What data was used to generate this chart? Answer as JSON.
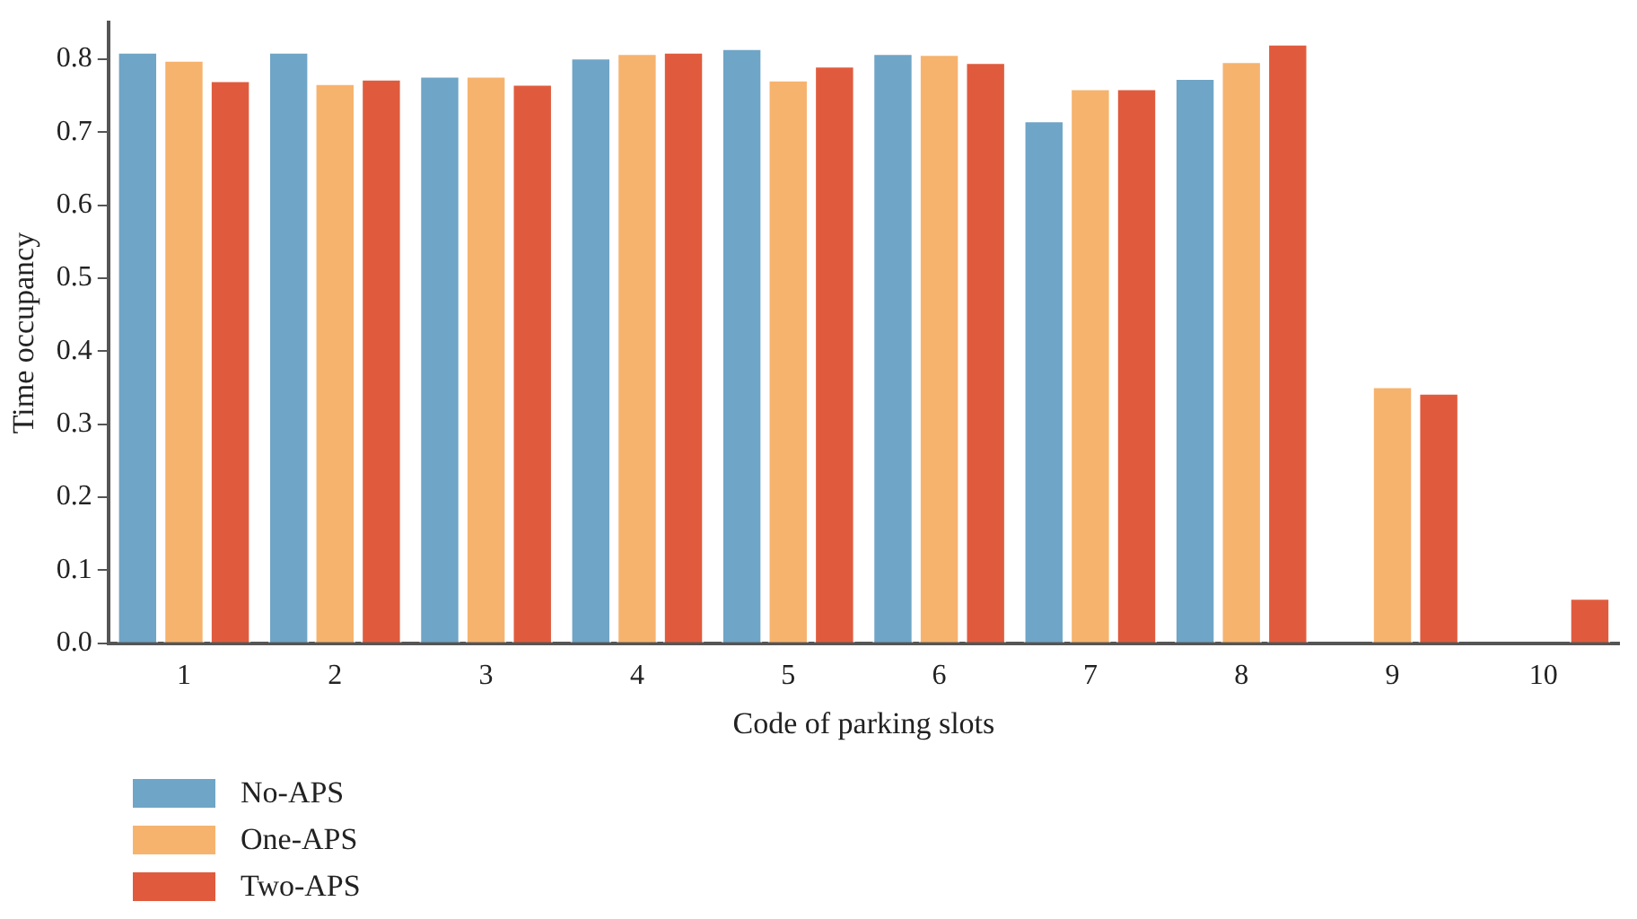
{
  "chart_data": {
    "type": "bar",
    "xlabel": "Code of parking slots",
    "ylabel": "Time occupancy",
    "categories": [
      "1",
      "2",
      "3",
      "4",
      "5",
      "6",
      "7",
      "8",
      "9",
      "10"
    ],
    "series": [
      {
        "name": "No-APS",
        "color": "#6fa5c6",
        "values": [
          0.81,
          0.81,
          0.777,
          0.802,
          0.815,
          0.808,
          0.716,
          0.774,
          null,
          null
        ]
      },
      {
        "name": "One-APS",
        "color": "#f6b36e",
        "values": [
          0.799,
          0.767,
          0.777,
          0.808,
          0.772,
          0.807,
          0.76,
          0.797,
          0.352,
          null
        ]
      },
      {
        "name": "Two-APS",
        "color": "#e05b3d",
        "values": [
          0.771,
          0.773,
          0.766,
          0.81,
          0.791,
          0.796,
          0.76,
          0.821,
          0.343,
          0.062
        ]
      }
    ],
    "ylim": [
      0,
      0.85
    ],
    "yticks": [
      {
        "value": 0,
        "label": "0.0"
      },
      0.1,
      0.2,
      0.3,
      0.4,
      0.5,
      0.6,
      0.7,
      0.8
    ],
    "grid": false,
    "legend": "bottom left"
  }
}
